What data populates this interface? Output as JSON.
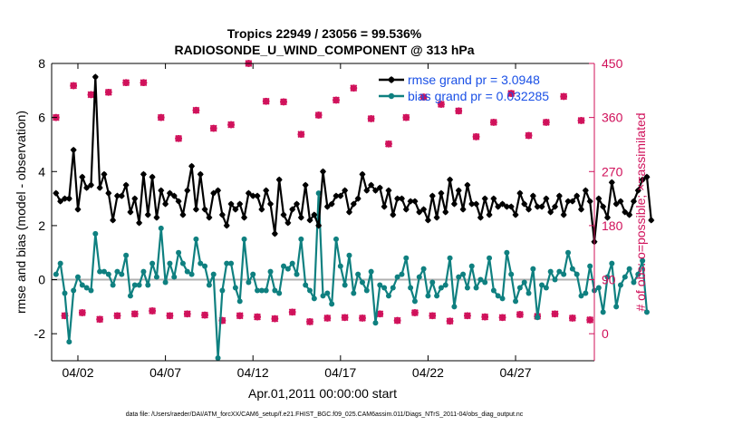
{
  "chart_data": {
    "type": "line",
    "title": "Tropics 22949 / 23056 = 99.536%",
    "subtitle": "RADIOSONDE_U_WIND_COMPONENT @ 313 hPa",
    "xlabel": "Apr.01,2011 00:00:00 start",
    "ylabel": "rmse and bias (model - observation)",
    "y2label": "# of obs: o=possible; ×=assimilated",
    "xlim": [
      0.5,
      31.5
    ],
    "ylim": [
      -3,
      8
    ],
    "y2lim": [
      -45,
      450
    ],
    "x_ticks": [
      {
        "x": 2,
        "label": "04/02"
      },
      {
        "x": 7,
        "label": "04/07"
      },
      {
        "x": 12,
        "label": "04/12"
      },
      {
        "x": 17,
        "label": "04/17"
      },
      {
        "x": 22,
        "label": "04/22"
      },
      {
        "x": 27,
        "label": "04/27"
      }
    ],
    "y_ticks": [
      -2,
      0,
      2,
      4,
      6,
      8
    ],
    "y2_ticks": [
      0,
      90,
      180,
      270,
      360,
      450
    ],
    "zero_line": 0,
    "colors": {
      "rmse": "#000000",
      "bias": "#0f8080",
      "obs": "#d0105a",
      "legend_text": "#1a50e6",
      "zero": "#b0b0b0"
    },
    "legend": [
      {
        "name": "rmse grand pr = 3.0948",
        "color": "#000000"
      },
      {
        "name": "bias grand pr = 0.032285",
        "color": "#0f8080"
      }
    ],
    "series": [
      {
        "name": "rmse",
        "color": "#000000",
        "x_start": 0.75,
        "dx": 0.25,
        "values": [
          3.2,
          2.9,
          3.0,
          3.0,
          4.8,
          2.6,
          3.8,
          3.4,
          3.5,
          7.5,
          3.4,
          3.9,
          3.2,
          2.2,
          3.1,
          3.1,
          3.5,
          2.5,
          3.0,
          2.1,
          3.9,
          2.4,
          3.8,
          2.3,
          3.3,
          2.8,
          3.2,
          3.1,
          2.9,
          2.4,
          3.3,
          4.2,
          2.6,
          3.9,
          2.6,
          2.3,
          3.2,
          3.3,
          2.4,
          2.0,
          2.8,
          2.6,
          2.8,
          2.3,
          3.2,
          3.1,
          3.1,
          2.6,
          3.3,
          2.8,
          1.7,
          3.7,
          2.4,
          2.1,
          2.6,
          2.8,
          2.3,
          3.5,
          2.2,
          2.4,
          2.0,
          4.0,
          2.7,
          2.8,
          3.1,
          3.1,
          3.3,
          2.5,
          2.8,
          3.0,
          3.9,
          3.3,
          3.5,
          3.3,
          3.4,
          2.7,
          3.3,
          2.4,
          3.0,
          3.0,
          2.6,
          2.9,
          2.9,
          2.5,
          2.6,
          2.2,
          3.1,
          2.3,
          3.2,
          2.5,
          3.7,
          2.8,
          3.3,
          2.6,
          3.5,
          2.8,
          2.8,
          2.3,
          3.0,
          2.4,
          3.0,
          2.7,
          2.8,
          2.7,
          2.7,
          2.4,
          3.2,
          2.8,
          2.6,
          3.1,
          2.7,
          2.7,
          3.0,
          2.5,
          2.7,
          3.1,
          2.4,
          2.9,
          2.9,
          3.1,
          2.6,
          3.3,
          2.9,
          1.4,
          3.0,
          2.7,
          2.3,
          3.6,
          2.8,
          2.9,
          2.5,
          2.4,
          2.9,
          3.3,
          3.7,
          3.8,
          2.2
        ]
      },
      {
        "name": "bias",
        "color": "#0f8080",
        "x_start": 0.75,
        "dx": 0.25,
        "values": [
          0.2,
          0.6,
          -0.5,
          -2.3,
          -0.4,
          0.1,
          -0.2,
          -0.3,
          -0.4,
          1.7,
          0.3,
          0.3,
          0.2,
          -0.2,
          0.3,
          0.2,
          0.9,
          -0.6,
          -0.2,
          -0.2,
          0.3,
          -0.2,
          0.6,
          0.1,
          1.9,
          -0.1,
          0.6,
          0.1,
          1.0,
          0.6,
          0.3,
          0.2,
          1.5,
          0.6,
          0.5,
          -0.2,
          0.2,
          -2.9,
          -0.4,
          0.6,
          0.6,
          -0.3,
          -0.8,
          1.5,
          -0.1,
          0.2,
          -0.4,
          -0.4,
          -0.4,
          0.3,
          -0.4,
          -0.5,
          0.5,
          0.4,
          0.6,
          0.2,
          1.5,
          -0.2,
          -0.4,
          -0.7,
          3.2,
          -0.6,
          -0.5,
          -0.9,
          1.5,
          0.5,
          -0.2,
          0.9,
          -0.5,
          0.2,
          -0.1,
          -0.4,
          0.3,
          -1.6,
          -0.2,
          -0.3,
          -0.6,
          -0.3,
          0.1,
          0.2,
          0.8,
          -0.3,
          -0.8,
          0.1,
          0.4,
          -0.6,
          -0.1,
          -0.6,
          -0.3,
          -0.2,
          0.8,
          -1.0,
          0.1,
          0.2,
          -0.3,
          0.5,
          -0.3,
          0.0,
          -0.1,
          0.8,
          -0.4,
          -0.6,
          -0.7,
          1.0,
          0.2,
          -0.8,
          -0.3,
          -0.1,
          -0.5,
          0.4,
          -1.4,
          -0.2,
          -0.3,
          0.3,
          0.0,
          0.3,
          0.2,
          1.0,
          0.4,
          0.2,
          -0.6,
          -0.5,
          0.5,
          -0.4,
          -0.3,
          -1.2,
          0.1,
          0.6,
          -1.0,
          -0.2,
          0.1,
          0.4,
          -0.1,
          0.2,
          0.7,
          -1.2
        ]
      },
      {
        "name": "possible obs",
        "color": "#d0105a",
        "x_start": 0.75,
        "dx": 0.5,
        "values": [
          360,
          30,
          413,
          35,
          398,
          24,
          402,
          30,
          418,
          33,
          418,
          38,
          360,
          30,
          325,
          33,
          372,
          31,
          342,
          22,
          348,
          30,
          450,
          28,
          387,
          25,
          386,
          36,
          332,
          20,
          364,
          26,
          389,
          27,
          409,
          26,
          358,
          33,
          316,
          22,
          360,
          35,
          394,
          30,
          382,
          21,
          371,
          30,
          328,
          28,
          352,
          27,
          400,
          32,
          330,
          29,
          352,
          33,
          395,
          26,
          355,
          23
        ]
      },
      {
        "name": "assimilated obs",
        "color": "#d0105a",
        "x_start": 0.75,
        "dx": 0.5,
        "values": [
          360,
          30,
          413,
          35,
          398,
          24,
          402,
          30,
          418,
          33,
          418,
          38,
          360,
          30,
          325,
          33,
          372,
          31,
          342,
          22,
          348,
          30,
          450,
          28,
          387,
          25,
          386,
          36,
          332,
          20,
          364,
          26,
          389,
          27,
          409,
          26,
          358,
          33,
          316,
          22,
          360,
          35,
          394,
          30,
          382,
          21,
          371,
          30,
          328,
          28,
          352,
          27,
          400,
          32,
          330,
          29,
          352,
          33,
          395,
          26,
          355,
          23
        ]
      }
    ]
  },
  "footer": "data file: /Users/raeder/DAI/ATM_forcXX/CAM6_setup/f.e21.FHIST_BGC.f09_025.CAM6assim.011/Diags_NTrS_2011-04/obs_diag_output.nc"
}
